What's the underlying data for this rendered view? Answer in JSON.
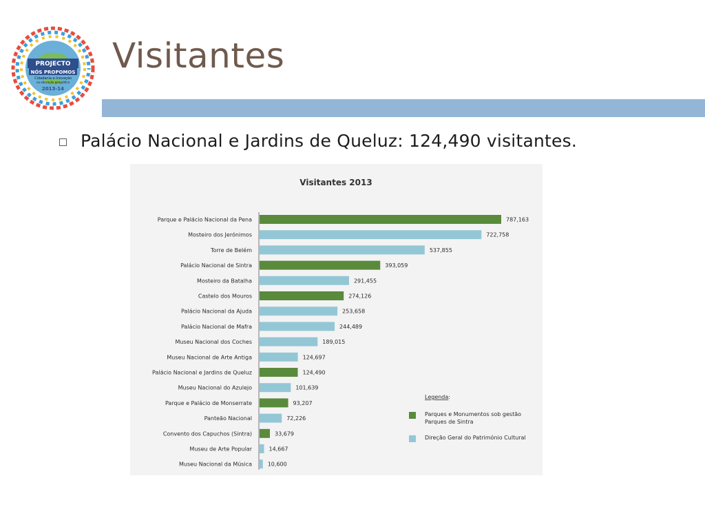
{
  "slide": {
    "title": "Visitantes",
    "bullet": "Palácio Nacional e Jardins de Queluz: 124,490 visitantes.",
    "colors": {
      "title": "#6f5a4d",
      "title_bar": "#93b6d6"
    }
  },
  "logo": {
    "lines": [
      "PROJECTO",
      "NÓS PROPOMOS",
      "Cidadania e Inovação",
      "na educação geográfica",
      "2013-14"
    ]
  },
  "chart_data": {
    "type": "bar",
    "orientation": "horizontal",
    "title": "Visitantes 2013",
    "categories": [
      "Parque e Palácio Nacional da Pena",
      "Mosteiro dos Jerónimos",
      "Torre de Belém",
      "Palácio Nacional de Sintra",
      "Mosteiro da Batalha",
      "Castelo dos Mouros",
      "Palácio Nacional da Ajuda",
      "Palácio Nacional de Mafra",
      "Museu Nacional dos Coches",
      "Museu Nacional de Arte Antiga",
      "Palácio Nacional e Jardins de Queluz",
      "Museu Nacional do Azulejo",
      "Parque e Palácio de Monserrate",
      "Panteão Nacional",
      "Convento dos Capuchos (Sintra)",
      "Museu de Arte Popular",
      "Museu Nacional da Música"
    ],
    "values": [
      787163,
      722758,
      537855,
      393059,
      291455,
      274126,
      253658,
      244489,
      189015,
      124697,
      124490,
      101639,
      93207,
      72226,
      33679,
      14667,
      10600
    ],
    "value_labels": [
      "787,163",
      "722,758",
      "537,855",
      "393,059",
      "291,455",
      "274,126",
      "253,658",
      "244,489",
      "189,015",
      "124,697",
      "124,490",
      "101,639",
      "93,207",
      "72,226",
      "33,679",
      "14,667",
      "10,600"
    ],
    "groups": [
      "psml",
      "dgpc",
      "dgpc",
      "psml",
      "dgpc",
      "psml",
      "dgpc",
      "dgpc",
      "dgpc",
      "dgpc",
      "psml",
      "dgpc",
      "psml",
      "dgpc",
      "psml",
      "dgpc",
      "dgpc"
    ],
    "legend": {
      "title": "Legenda",
      "title_suffix": ":",
      "placement": "bottom-right",
      "items": [
        {
          "key": "psml",
          "line1": "Parques e Monumentos sob gestão",
          "line2": "Parques de Sintra",
          "color": "#5a8a3c"
        },
        {
          "key": "dgpc",
          "line1": "Direção Geral do Património Cultural",
          "line2": "",
          "color": "#93c7d6"
        }
      ]
    },
    "grid": false
  }
}
